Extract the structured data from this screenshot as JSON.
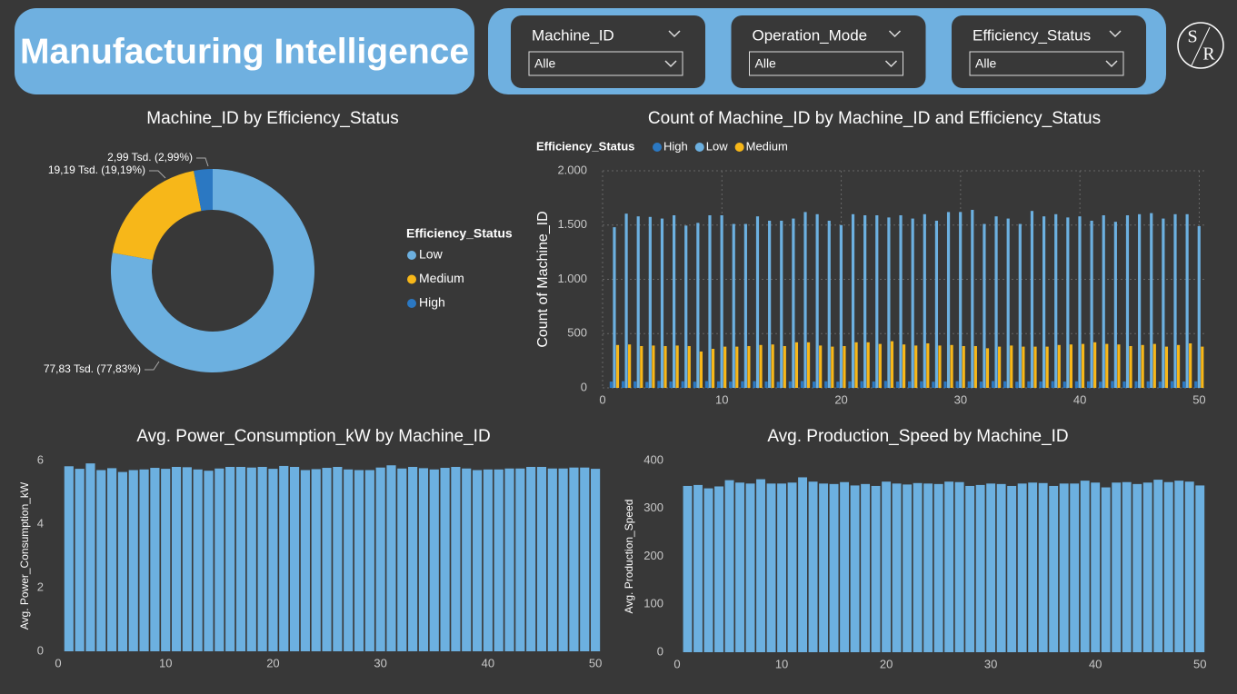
{
  "header": {
    "title": "Manufacturing Intelligence"
  },
  "filters": [
    {
      "label": "Machine_ID",
      "value": "Alle"
    },
    {
      "label": "Operation_Mode",
      "value": "Alle"
    },
    {
      "label": "Efficiency_Status",
      "value": "Alle"
    }
  ],
  "logo": {
    "top": "S",
    "bottom": "R"
  },
  "chart_data": [
    {
      "type": "donut",
      "title": "Machine_ID by Efficiency_Status",
      "legend_title": "Efficiency_Status",
      "categories": [
        "Low",
        "Medium",
        "High"
      ],
      "values": [
        77830,
        19190,
        2990
      ],
      "value_labels": [
        "77,83 Tsd. (77,83%)",
        "19,19 Tsd. (19,19%)",
        "2,99 Tsd. (2,99%)"
      ],
      "colors": [
        "#6cb0e0",
        "#f7b719",
        "#2b78c2"
      ]
    },
    {
      "type": "bar",
      "title": "Count of Machine_ID by Machine_ID and Efficiency_Status",
      "legend_title": "Efficiency_Status",
      "y_label": "Count of Machine_ID",
      "grid": true,
      "x": [
        1,
        2,
        3,
        4,
        5,
        6,
        7,
        8,
        9,
        10,
        11,
        12,
        13,
        14,
        15,
        16,
        17,
        18,
        19,
        20,
        21,
        22,
        23,
        24,
        25,
        26,
        27,
        28,
        29,
        30,
        31,
        32,
        33,
        34,
        35,
        36,
        37,
        38,
        39,
        40,
        41,
        42,
        43,
        44,
        45,
        46,
        47,
        48,
        49,
        50
      ],
      "xlim": [
        0,
        50.5
      ],
      "xticks": [
        0,
        10,
        20,
        30,
        40,
        50
      ],
      "ylim": [
        0,
        2000
      ],
      "yticks": [
        0,
        500,
        {
          "value": 1000,
          "label": "1.000"
        },
        {
          "value": 1500,
          "label": "1.500"
        },
        {
          "value": 2000,
          "label": "2.000"
        }
      ],
      "series": [
        {
          "name": "High",
          "color": "#2b78c2",
          "values": [
            58,
            62,
            60,
            55,
            64,
            59,
            61,
            57,
            63,
            60,
            58,
            61,
            62,
            59,
            56,
            60,
            63,
            58,
            61,
            57,
            60,
            62,
            59,
            64,
            58,
            60,
            61,
            57,
            59,
            62,
            60,
            58,
            63,
            61,
            57,
            60,
            59,
            62,
            58,
            61,
            60,
            57,
            63,
            59,
            61,
            60,
            58,
            62,
            59,
            61
          ]
        },
        {
          "name": "Low",
          "color": "#6cb0e0",
          "values": [
            1480,
            1605,
            1580,
            1575,
            1560,
            1590,
            1495,
            1520,
            1590,
            1590,
            1510,
            1510,
            1580,
            1540,
            1540,
            1560,
            1620,
            1600,
            1540,
            1500,
            1600,
            1590,
            1590,
            1570,
            1590,
            1560,
            1600,
            1540,
            1620,
            1620,
            1640,
            1510,
            1580,
            1560,
            1510,
            1630,
            1580,
            1600,
            1570,
            1580,
            1540,
            1590,
            1530,
            1590,
            1600,
            1610,
            1560,
            1600,
            1600,
            1490
          ]
        },
        {
          "name": "Medium",
          "color": "#f7b719",
          "values": [
            395,
            400,
            385,
            390,
            385,
            390,
            385,
            335,
            360,
            380,
            380,
            385,
            395,
            400,
            385,
            420,
            420,
            390,
            380,
            385,
            420,
            420,
            405,
            430,
            400,
            390,
            410,
            390,
            395,
            385,
            385,
            365,
            380,
            390,
            380,
            380,
            380,
            395,
            400,
            405,
            420,
            405,
            400,
            385,
            395,
            405,
            380,
            395,
            410,
            380
          ]
        }
      ]
    },
    {
      "type": "bar",
      "title": "Avg. Power_Consumption_kW by Machine_ID",
      "y_label": "Avg. Power_Consumption_kW",
      "grid": false,
      "color": "#6cb0e0",
      "x": [
        1,
        2,
        3,
        4,
        5,
        6,
        7,
        8,
        9,
        10,
        11,
        12,
        13,
        14,
        15,
        16,
        17,
        18,
        19,
        20,
        21,
        22,
        23,
        24,
        25,
        26,
        27,
        28,
        29,
        30,
        31,
        32,
        33,
        34,
        35,
        36,
        37,
        38,
        39,
        40,
        41,
        42,
        43,
        44,
        45,
        46,
        47,
        48,
        49,
        50
      ],
      "xlim": [
        0,
        50.5
      ],
      "xticks": [
        0,
        10,
        20,
        30,
        40,
        50
      ],
      "ylim": [
        0,
        6
      ],
      "yticks": [
        0,
        2,
        4,
        6
      ],
      "values": [
        5.82,
        5.74,
        5.91,
        5.7,
        5.76,
        5.64,
        5.7,
        5.72,
        5.77,
        5.74,
        5.8,
        5.79,
        5.72,
        5.68,
        5.75,
        5.8,
        5.8,
        5.78,
        5.8,
        5.74,
        5.83,
        5.8,
        5.7,
        5.73,
        5.77,
        5.8,
        5.72,
        5.7,
        5.7,
        5.78,
        5.85,
        5.75,
        5.8,
        5.76,
        5.72,
        5.77,
        5.8,
        5.75,
        5.7,
        5.72,
        5.72,
        5.75,
        5.75,
        5.8,
        5.8,
        5.75,
        5.75,
        5.78,
        5.78,
        5.74
      ]
    },
    {
      "type": "bar",
      "title": "Avg. Production_Speed by Machine_ID",
      "y_label": "Avg. Production_Speed",
      "grid": false,
      "color": "#6cb0e0",
      "x": [
        1,
        2,
        3,
        4,
        5,
        6,
        7,
        8,
        9,
        10,
        11,
        12,
        13,
        14,
        15,
        16,
        17,
        18,
        19,
        20,
        21,
        22,
        23,
        24,
        25,
        26,
        27,
        28,
        29,
        30,
        31,
        32,
        33,
        34,
        35,
        36,
        37,
        38,
        39,
        40,
        41,
        42,
        43,
        44,
        45,
        46,
        47,
        48,
        49,
        50
      ],
      "xlim": [
        0,
        50.5
      ],
      "xticks": [
        0,
        10,
        20,
        30,
        40,
        50
      ],
      "ylim": [
        0,
        400
      ],
      "yticks": [
        0,
        100,
        200,
        300,
        400
      ],
      "values": [
        347,
        349,
        342,
        346,
        359,
        354,
        352,
        361,
        352,
        352,
        354,
        365,
        356,
        352,
        351,
        355,
        348,
        351,
        347,
        356,
        352,
        350,
        353,
        352,
        351,
        356,
        355,
        347,
        349,
        352,
        351,
        347,
        352,
        354,
        353,
        347,
        352,
        352,
        358,
        354,
        344,
        354,
        355,
        351,
        354,
        360,
        355,
        358,
        356,
        348
      ]
    }
  ]
}
